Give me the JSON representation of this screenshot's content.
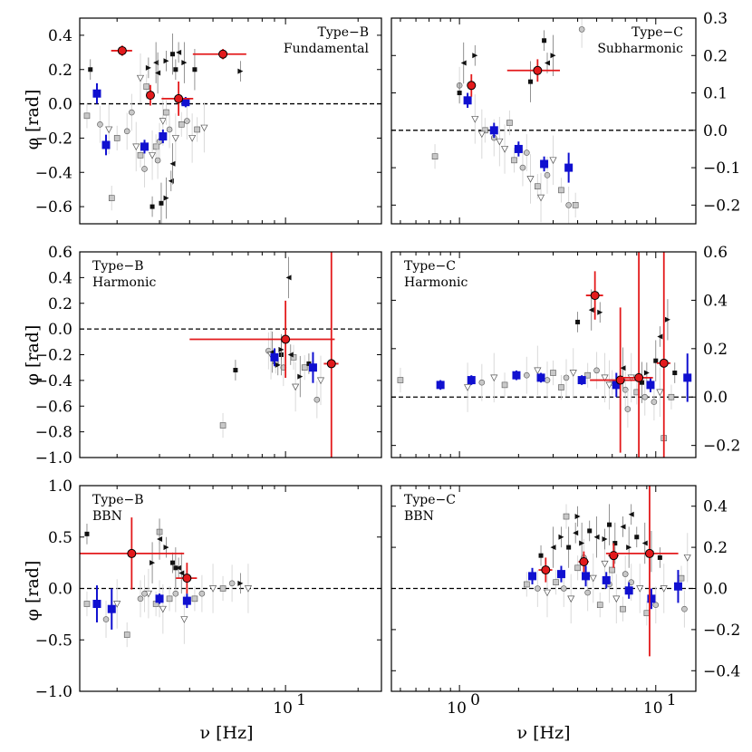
{
  "figure": {
    "xlabel": "ν [Hz]",
    "ylabel": "φ [rad]"
  },
  "colors": {
    "red": "#e31a1c",
    "blue": "#1010d0",
    "grey_marker": "#c8c8c8",
    "black": "#111111",
    "errorbar_grey": "#d9d9d9",
    "zero_line": "#000000"
  },
  "chart_data": [
    {
      "type": "scatter",
      "id": "typeB-fundamental",
      "label": [
        "Type−B",
        "Fundamental"
      ],
      "label_pos": "top-right",
      "xscale": "log",
      "xlim": [
        1.4,
        25
      ],
      "ylim": [
        -0.7,
        0.5
      ],
      "yticks": [
        -0.6,
        -0.4,
        -0.2,
        0.0,
        0.2,
        0.4
      ],
      "yaxis": "left",
      "xticks": [
        10
      ],
      "xtick_labels": [
        "10^1"
      ],
      "red": [
        [
          2.1,
          0.31,
          0.1,
          0.03
        ],
        [
          2.75,
          0.05,
          0.0,
          0.06
        ],
        [
          3.6,
          0.03,
          0.15,
          0.1
        ],
        [
          5.5,
          0.29,
          0.25,
          0.03
        ]
      ],
      "blue": [
        [
          1.65,
          0.06,
          0.06
        ],
        [
          1.8,
          -0.24,
          0.06
        ],
        [
          2.6,
          -0.25,
          0.04
        ],
        [
          3.1,
          -0.19,
          0.04
        ],
        [
          3.85,
          0.01,
          0.03
        ]
      ],
      "black": [
        [
          1.55,
          0.2
        ],
        [
          2.9,
          0.24
        ],
        [
          3.2,
          0.25
        ],
        [
          3.4,
          0.29
        ],
        [
          3.6,
          0.3
        ],
        [
          3.8,
          0.24
        ],
        [
          3.5,
          0.2
        ],
        [
          2.95,
          0.18
        ],
        [
          2.7,
          0.21
        ],
        [
          3.05,
          -0.58
        ],
        [
          3.35,
          -0.45
        ],
        [
          3.2,
          -0.55
        ],
        [
          2.8,
          -0.6
        ],
        [
          3.4,
          -0.35
        ],
        [
          6.5,
          0.19
        ],
        [
          4.2,
          0.2
        ]
      ],
      "grey": [
        [
          1.5,
          -0.07
        ],
        [
          1.7,
          -0.12
        ],
        [
          1.85,
          -0.15
        ],
        [
          2.0,
          -0.2
        ],
        [
          2.2,
          -0.16
        ],
        [
          2.4,
          -0.25
        ],
        [
          2.5,
          -0.3
        ],
        [
          2.6,
          -0.38
        ],
        [
          2.8,
          -0.3
        ],
        [
          2.9,
          -0.25
        ],
        [
          3.0,
          -0.22
        ],
        [
          3.1,
          -0.1
        ],
        [
          3.2,
          -0.05
        ],
        [
          3.3,
          -0.15
        ],
        [
          3.5,
          -0.2
        ],
        [
          3.7,
          -0.12
        ],
        [
          3.9,
          -0.1
        ],
        [
          4.1,
          -0.2
        ],
        [
          4.3,
          -0.15
        ],
        [
          2.3,
          -0.05
        ],
        [
          2.5,
          0.15
        ],
        [
          2.65,
          0.1
        ],
        [
          2.95,
          -0.33
        ],
        [
          4.6,
          -0.14
        ],
        [
          1.9,
          -0.55
        ]
      ]
    },
    {
      "type": "scatter",
      "id": "typeC-subharmonic",
      "label": [
        "Type−C",
        "Subharmonic"
      ],
      "label_pos": "top-right",
      "xscale": "log",
      "xlim": [
        0.45,
        16
      ],
      "ylim": [
        -0.25,
        0.3
      ],
      "yticks": [
        -0.2,
        -0.1,
        0.0,
        0.1,
        0.2,
        0.3
      ],
      "yaxis": "right",
      "xticks": [
        1,
        10
      ],
      "xtick_labels": [
        "10^0",
        "10^1"
      ],
      "red": [
        [
          1.15,
          0.12,
          0.05,
          0.03
        ],
        [
          2.5,
          0.16,
          0.3,
          0.03
        ]
      ],
      "blue": [
        [
          1.1,
          0.08,
          0.02
        ],
        [
          1.5,
          0.0,
          0.02
        ],
        [
          2.0,
          -0.05,
          0.02
        ],
        [
          2.7,
          -0.09,
          0.02
        ],
        [
          3.6,
          -0.1,
          0.04
        ]
      ],
      "black": [
        [
          1.0,
          0.1
        ],
        [
          1.05,
          0.18
        ],
        [
          1.2,
          0.2
        ],
        [
          2.3,
          0.13
        ],
        [
          2.8,
          0.18
        ],
        [
          3.0,
          0.2
        ],
        [
          2.7,
          0.24
        ]
      ],
      "grey": [
        [
          0.75,
          -0.07
        ],
        [
          1.0,
          0.12
        ],
        [
          1.2,
          0.03
        ],
        [
          1.35,
          0.0
        ],
        [
          1.5,
          -0.02
        ],
        [
          1.7,
          -0.05
        ],
        [
          1.9,
          -0.08
        ],
        [
          2.1,
          -0.1
        ],
        [
          2.3,
          -0.13
        ],
        [
          2.5,
          -0.15
        ],
        [
          2.8,
          -0.12
        ],
        [
          3.0,
          -0.08
        ],
        [
          3.3,
          -0.16
        ],
        [
          3.6,
          -0.2
        ],
        [
          1.6,
          -0.03
        ],
        [
          1.8,
          0.02
        ],
        [
          2.2,
          -0.06
        ],
        [
          2.6,
          -0.18
        ],
        [
          3.9,
          -0.2
        ],
        [
          4.2,
          0.27
        ],
        [
          1.3,
          -0.01
        ]
      ]
    },
    {
      "type": "scatter",
      "id": "typeB-harmonic",
      "label": [
        "Type−B",
        "Harmonic"
      ],
      "label_pos": "top-left",
      "xscale": "log",
      "xlim": [
        1.4,
        25
      ],
      "ylim": [
        -1.0,
        0.6
      ],
      "yticks": [
        -1.0,
        -0.8,
        -0.6,
        -0.4,
        -0.2,
        0.0,
        0.2,
        0.4,
        0.6
      ],
      "yaxis": "left",
      "xticks": [
        10
      ],
      "xtick_labels": [
        "10^1"
      ],
      "red": [
        [
          10.0,
          -0.08,
          0.6,
          0.3
        ],
        [
          15.5,
          -0.27,
          0.07,
          2.2
        ]
      ],
      "blue": [
        [
          9.0,
          -0.22,
          0.07
        ],
        [
          13.0,
          -0.3,
          0.12
        ]
      ],
      "black": [
        [
          6.2,
          -0.32
        ],
        [
          8.8,
          -0.18
        ],
        [
          9.3,
          -0.28
        ],
        [
          9.6,
          -0.2
        ],
        [
          10.5,
          -0.2
        ],
        [
          11.5,
          -0.37
        ],
        [
          12.5,
          -0.27
        ],
        [
          10.3,
          0.4
        ],
        [
          9.6,
          -0.16
        ]
      ],
      "grey": [
        [
          5.5,
          -0.75
        ],
        [
          8.5,
          -0.17
        ],
        [
          8.7,
          -0.2
        ],
        [
          9.1,
          -0.25
        ],
        [
          9.8,
          -0.3
        ],
        [
          11.0,
          -0.45
        ],
        [
          12.0,
          -0.3
        ],
        [
          13.5,
          -0.55
        ],
        [
          14.0,
          -0.4
        ],
        [
          10.8,
          -0.22
        ]
      ]
    },
    {
      "type": "scatter",
      "id": "typeC-harmonic",
      "label": [
        "Type−C",
        "Harmonic"
      ],
      "label_pos": "top-left",
      "xscale": "log",
      "xlim": [
        0.45,
        16
      ],
      "ylim": [
        -0.25,
        0.6
      ],
      "yticks": [
        -0.2,
        0.0,
        0.2,
        0.4,
        0.6
      ],
      "yaxis": "right",
      "xticks": [
        1,
        10
      ],
      "xtick_labels": [
        "10^0",
        "10^1"
      ],
      "red": [
        [
          4.9,
          0.42,
          0.1,
          0.1
        ],
        [
          6.6,
          0.07,
          0.3,
          0.3
        ],
        [
          8.2,
          0.08,
          0.18,
          0.6
        ],
        [
          11.0,
          0.14,
          0.08,
          0.5
        ]
      ],
      "blue": [
        [
          0.8,
          0.05,
          0.02
        ],
        [
          1.15,
          0.07,
          0.02
        ],
        [
          1.95,
          0.09,
          0.02
        ],
        [
          2.6,
          0.08,
          0.02
        ],
        [
          4.2,
          0.07,
          0.02
        ],
        [
          6.3,
          0.05,
          0.05
        ],
        [
          9.4,
          0.05,
          0.03
        ],
        [
          14.5,
          0.08,
          0.1
        ]
      ],
      "black": [
        [
          4.0,
          0.31
        ],
        [
          4.7,
          0.36
        ],
        [
          5.2,
          0.35
        ],
        [
          8.5,
          0.06
        ],
        [
          10.5,
          0.25
        ],
        [
          11.5,
          0.32
        ],
        [
          12.5,
          0.1
        ],
        [
          6.8,
          0.12
        ],
        [
          9.0,
          0.1
        ],
        [
          10.0,
          0.15
        ]
      ],
      "grey": [
        [
          0.5,
          0.07
        ],
        [
          1.3,
          0.06
        ],
        [
          1.5,
          0.08
        ],
        [
          1.7,
          0.05
        ],
        [
          2.2,
          0.09
        ],
        [
          2.5,
          0.11
        ],
        [
          3.0,
          0.1
        ],
        [
          3.5,
          0.08
        ],
        [
          3.8,
          0.1
        ],
        [
          4.5,
          0.09
        ],
        [
          5.0,
          0.11
        ],
        [
          5.5,
          0.08
        ],
        [
          6.0,
          0.06
        ],
        [
          7.0,
          0.03
        ],
        [
          7.5,
          0.08
        ],
        [
          8.0,
          0.02
        ],
        [
          9.8,
          -0.02
        ],
        [
          10.5,
          0.02
        ],
        [
          11.0,
          -0.17
        ],
        [
          7.2,
          -0.05
        ],
        [
          5.8,
          0.05
        ],
        [
          3.3,
          0.04
        ],
        [
          2.8,
          0.07
        ],
        [
          1.1,
          0.04
        ],
        [
          12.0,
          0.0
        ],
        [
          8.8,
          0.0
        ]
      ]
    },
    {
      "type": "scatter",
      "id": "typeB-bbn",
      "label": [
        "Type−B",
        "BBN"
      ],
      "label_pos": "top-left",
      "xscale": "log",
      "xlim": [
        1.4,
        25
      ],
      "ylim": [
        -1.0,
        1.0
      ],
      "yticks": [
        -1.0,
        -0.5,
        0.0,
        0.5,
        1.0
      ],
      "yaxis": "left",
      "xticks": [
        10
      ],
      "xtick_labels": [
        "10^1"
      ],
      "red": [
        [
          2.3,
          0.34,
          0.65,
          0.35
        ],
        [
          3.9,
          0.1,
          0.1,
          0.15
        ]
      ],
      "blue": [
        [
          1.65,
          -0.15,
          0.18
        ],
        [
          1.9,
          -0.2,
          0.2
        ],
        [
          3.0,
          -0.1,
          0.05
        ],
        [
          3.9,
          -0.12,
          0.07
        ]
      ],
      "black": [
        [
          1.5,
          0.53
        ],
        [
          3.0,
          0.48
        ],
        [
          3.2,
          0.4
        ],
        [
          3.5,
          0.2
        ],
        [
          3.6,
          0.2
        ],
        [
          2.8,
          0.25
        ],
        [
          3.4,
          0.25
        ],
        [
          3.7,
          0.15
        ],
        [
          6.5,
          0.05
        ]
      ],
      "grey": [
        [
          1.5,
          -0.15
        ],
        [
          1.8,
          -0.3
        ],
        [
          2.0,
          -0.15
        ],
        [
          2.2,
          -0.45
        ],
        [
          2.5,
          -0.1
        ],
        [
          2.7,
          -0.05
        ],
        [
          2.9,
          -0.15
        ],
        [
          3.0,
          -0.1
        ],
        [
          3.1,
          -0.2
        ],
        [
          3.3,
          -0.1
        ],
        [
          3.5,
          -0.05
        ],
        [
          3.8,
          -0.3
        ],
        [
          4.2,
          -0.1
        ],
        [
          4.5,
          -0.05
        ],
        [
          5.0,
          0.0
        ],
        [
          5.5,
          0.0
        ],
        [
          6.0,
          0.05
        ],
        [
          7.0,
          0.0
        ],
        [
          3.0,
          0.55
        ],
        [
          2.6,
          -0.05
        ]
      ]
    },
    {
      "type": "scatter",
      "id": "typeC-bbn",
      "label": [
        "Type−C",
        "BBN"
      ],
      "label_pos": "top-left",
      "xscale": "log",
      "xlim": [
        0.45,
        16
      ],
      "ylim": [
        -0.5,
        0.5
      ],
      "yticks": [
        -0.4,
        -0.2,
        0.0,
        0.2,
        0.4
      ],
      "yaxis": "right",
      "xticks": [
        1,
        10
      ],
      "xtick_labels": [
        "10^0",
        "10^1"
      ],
      "red": [
        [
          2.75,
          0.09,
          0.08,
          0.06
        ],
        [
          4.3,
          0.13,
          0.06,
          0.05
        ],
        [
          6.1,
          0.16,
          0.06,
          0.06
        ],
        [
          9.3,
          0.17,
          0.4,
          0.5
        ]
      ],
      "blue": [
        [
          2.35,
          0.06,
          0.04
        ],
        [
          3.3,
          0.07,
          0.04
        ],
        [
          4.4,
          0.06,
          0.05
        ],
        [
          5.6,
          0.04,
          0.04
        ],
        [
          7.3,
          -0.01,
          0.04
        ],
        [
          9.5,
          -0.05,
          0.05
        ],
        [
          13.0,
          0.01,
          0.08
        ]
      ],
      "black": [
        [
          2.6,
          0.16
        ],
        [
          3.0,
          0.2
        ],
        [
          3.3,
          0.25
        ],
        [
          3.6,
          0.2
        ],
        [
          3.9,
          0.27
        ],
        [
          4.2,
          0.22
        ],
        [
          4.6,
          0.28
        ],
        [
          5.0,
          0.25
        ],
        [
          5.5,
          0.24
        ],
        [
          6.2,
          0.22
        ],
        [
          6.8,
          0.3
        ],
        [
          7.3,
          0.2
        ],
        [
          8.0,
          0.25
        ],
        [
          8.8,
          0.22
        ],
        [
          4.0,
          0.35
        ],
        [
          5.8,
          0.31
        ],
        [
          7.5,
          0.36
        ],
        [
          9.5,
          0.18
        ],
        [
          10.5,
          0.15
        ]
      ],
      "grey": [
        [
          2.2,
          0.02
        ],
        [
          2.5,
          0.0
        ],
        [
          2.8,
          -0.02
        ],
        [
          3.1,
          0.03
        ],
        [
          3.4,
          0.0
        ],
        [
          3.7,
          -0.05
        ],
        [
          4.0,
          0.1
        ],
        [
          4.5,
          -0.02
        ],
        [
          4.8,
          0.05
        ],
        [
          5.2,
          -0.08
        ],
        [
          5.8,
          0.02
        ],
        [
          6.3,
          -0.05
        ],
        [
          6.8,
          -0.1
        ],
        [
          7.5,
          0.03
        ],
        [
          8.3,
          0.0
        ],
        [
          9.0,
          -0.12
        ],
        [
          10.0,
          -0.08
        ],
        [
          11.0,
          0.0
        ],
        [
          13.5,
          0.05
        ],
        [
          14.0,
          -0.1
        ],
        [
          14.5,
          0.15
        ],
        [
          3.5,
          0.35
        ],
        [
          4.3,
          0.15
        ],
        [
          5.5,
          0.12
        ],
        [
          6.0,
          0.09
        ],
        [
          7.0,
          0.07
        ]
      ]
    }
  ]
}
